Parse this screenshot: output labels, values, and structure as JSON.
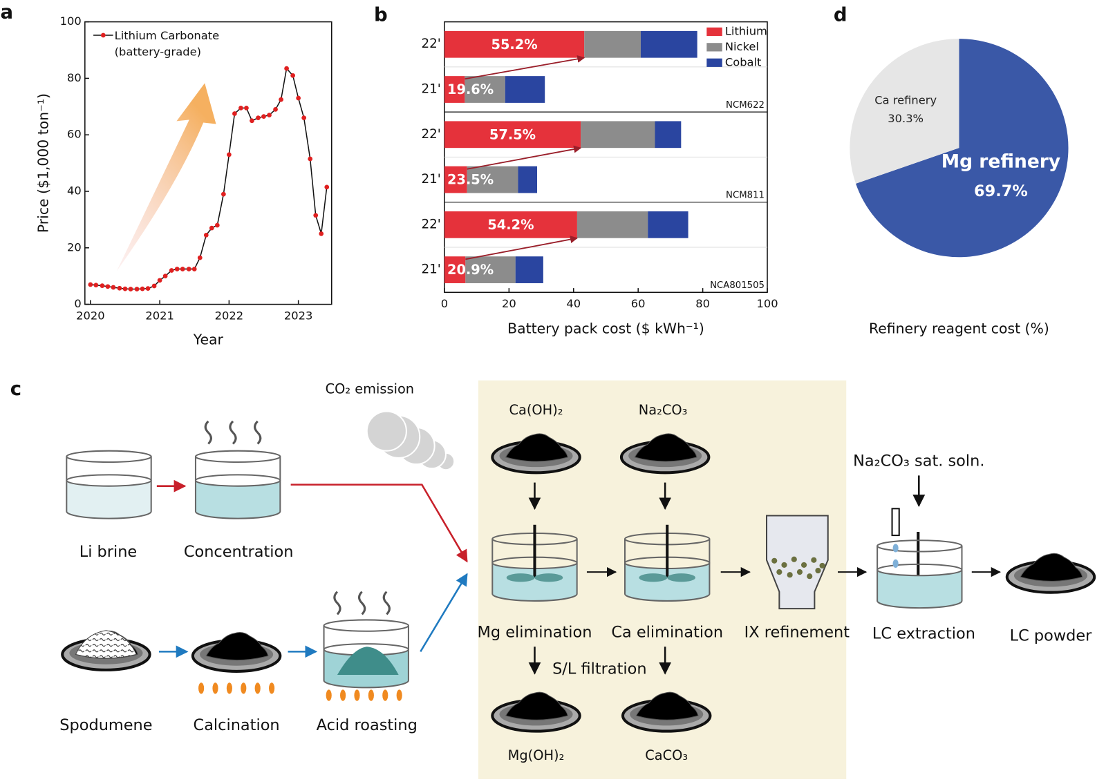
{
  "chart_data": [
    {
      "type": "line",
      "panel_label": "a",
      "xlabel": "Year",
      "ylabel": "Price ($1,000 ton⁻¹)",
      "x": [
        2020.0,
        2020.08,
        2020.17,
        2020.25,
        2020.33,
        2020.42,
        2020.5,
        2020.58,
        2020.67,
        2020.75,
        2020.83,
        2020.92,
        2021.0,
        2021.08,
        2021.17,
        2021.25,
        2021.33,
        2021.42,
        2021.5,
        2021.58,
        2021.67,
        2021.75,
        2021.83,
        2021.92,
        2022.0,
        2022.08,
        2022.17,
        2022.25,
        2022.33,
        2022.42,
        2022.5,
        2022.58,
        2022.67,
        2022.75,
        2022.83,
        2022.92,
        2023.0,
        2023.08,
        2023.17,
        2023.25,
        2023.33,
        2023.41
      ],
      "series": [
        {
          "name": "Lithium Carbonate (battery-grade)",
          "color": "#e02020",
          "values": [
            7,
            6.8,
            6.6,
            6.3,
            6,
            5.7,
            5.5,
            5.4,
            5.4,
            5.5,
            5.6,
            6.5,
            8.5,
            10,
            12,
            12.5,
            12.5,
            12.5,
            12.5,
            16.5,
            24.5,
            27,
            28,
            39,
            53,
            67.5,
            69.5,
            69.5,
            65,
            66,
            66.5,
            67,
            69,
            72.5,
            83.5,
            81,
            73,
            66,
            51.5,
            31.5,
            25,
            41.5
          ]
        }
      ],
      "xlim": [
        2019.92,
        2023.48
      ],
      "xticks": [
        2020,
        2021,
        2022,
        2023
      ],
      "ylim": [
        0,
        100
      ],
      "yticks": [
        0,
        20,
        40,
        60,
        80,
        100
      ]
    },
    {
      "type": "bar",
      "panel_label": "b",
      "xlabel": "Battery pack cost ($ kWh⁻¹)",
      "categories": [
        "22'",
        "21'",
        "22'",
        "21'",
        "22'",
        "21'"
      ],
      "groups": [
        "NCM622",
        "NCM811",
        "NCA801505"
      ],
      "series": [
        {
          "name": "Lithium",
          "color": "#e5323b",
          "values": [
            43.3,
            6.3,
            42.2,
            7.0,
            41.1,
            6.5
          ]
        },
        {
          "name": "Nickel",
          "color": "#8c8c8c",
          "values": [
            17.5,
            12.5,
            23.0,
            15.8,
            21.9,
            15.5
          ]
        },
        {
          "name": "Cobalt",
          "color": "#2a45a0",
          "values": [
            17.5,
            12.3,
            8.1,
            5.9,
            12.5,
            8.6
          ]
        }
      ],
      "annotations": [
        "55.2%",
        "19.6%",
        "57.5%",
        "23.5%",
        "54.2%",
        "20.9%"
      ],
      "xlim": [
        0,
        100
      ],
      "xticks": [
        0,
        20,
        40,
        60,
        80,
        100
      ]
    },
    {
      "type": "pie",
      "panel_label": "d",
      "xlabel": "Refinery reagent cost (%)",
      "categories": [
        "Mg refinery",
        "Ca refinery"
      ],
      "values": [
        69.7,
        30.3
      ],
      "value_labels": [
        "69.7%",
        "30.3%"
      ],
      "colors": [
        "#3a58a7",
        "#e6e6e6"
      ]
    }
  ],
  "diagram": {
    "panel_label": "c",
    "co2": "CO₂ emission",
    "li_brine": "Li brine",
    "concentration": "Concentration",
    "spodumene": "Spodumene",
    "calcination": "Calcination",
    "acid_roasting": "Acid roasting",
    "caoh2": "Ca(OH)₂",
    "na2co3": "Na₂CO₃",
    "mg_elimination": "Mg elimination",
    "ca_elimination": "Ca elimination",
    "ix_refinement": "IX refinement",
    "sat_soln": "Na₂CO₃ sat. soln.",
    "lc_extraction": "LC extraction",
    "lc_powder": "LC powder",
    "sl_filtration": "S/L filtration",
    "mgoh2": "Mg(OH)₂",
    "caco3": "CaCO₃"
  }
}
